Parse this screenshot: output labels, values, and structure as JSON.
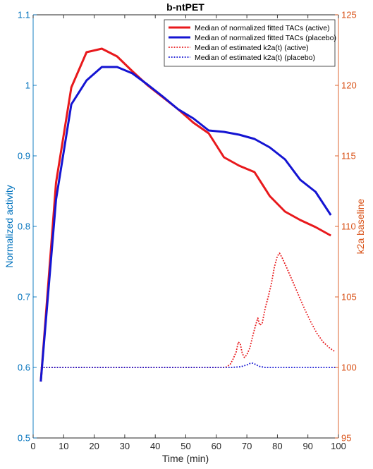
{
  "colors": {
    "left_axis": "#0072BD",
    "right_axis": "#D95319",
    "active": "#e8191c",
    "placebo": "#1414d2"
  },
  "chart_data": {
    "type": "line",
    "title": "b-ntPET",
    "xlabel": "Time (min)",
    "ylabel": "Normalized activity",
    "y2label": "k2a baseline",
    "xlim": [
      0,
      100
    ],
    "ylim": [
      0.5,
      1.1
    ],
    "y2lim": [
      95,
      125
    ],
    "x_ticks": [
      "0",
      "10",
      "20",
      "30",
      "40",
      "50",
      "60",
      "70",
      "80",
      "90",
      "100"
    ],
    "y_ticks": [
      "0.5",
      "0.6",
      "0.7",
      "0.8",
      "0.9",
      "1",
      "1.1"
    ],
    "y2_ticks": [
      "95",
      "100",
      "105",
      "110",
      "115",
      "120",
      "125"
    ],
    "legend_position": "top-right",
    "grid": false,
    "series": [
      {
        "name": "Median of normalized fitted TACs (active)",
        "axis": "left",
        "style": "solid",
        "color": "#e8191c",
        "x": [
          2.5,
          7.5,
          12.5,
          17.5,
          22.5,
          27.5,
          32.5,
          37.5,
          42.5,
          47.5,
          52.5,
          57.5,
          62.5,
          67.5,
          72.5,
          77.5,
          82.5,
          87.5,
          92.5,
          97.5
        ],
        "y": [
          0.58,
          0.862,
          0.997,
          1.047,
          1.052,
          1.041,
          1.02,
          1.0,
          0.983,
          0.966,
          0.947,
          0.932,
          0.898,
          0.886,
          0.877,
          0.843,
          0.821,
          0.809,
          0.799,
          0.787
        ]
      },
      {
        "name": "Median of normalized fitted TACs  (placebo)",
        "axis": "left",
        "style": "solid",
        "color": "#1414d2",
        "x": [
          2.5,
          7.5,
          12.5,
          17.5,
          22.5,
          27.5,
          32.5,
          37.5,
          42.5,
          47.5,
          52.5,
          57.5,
          62.5,
          67.5,
          72.5,
          77.5,
          82.5,
          87.5,
          92.5,
          97.5
        ],
        "y": [
          0.58,
          0.838,
          0.973,
          1.007,
          1.026,
          1.026,
          1.017,
          1.001,
          0.984,
          0.966,
          0.953,
          0.936,
          0.934,
          0.93,
          0.924,
          0.912,
          0.895,
          0.866,
          0.849,
          0.816
        ]
      },
      {
        "name": "Median of estimated k2a(t) (active)",
        "axis": "right",
        "style": "dotted",
        "color": "#e8191c",
        "x": [
          2.5,
          10,
          20,
          30,
          40,
          50,
          60,
          63,
          64.5,
          65.5,
          66.5,
          67.2,
          67.8,
          68.5,
          69.2,
          70,
          71,
          72,
          73,
          73.6,
          74.2,
          75,
          76,
          77,
          78,
          79,
          80,
          80.7,
          81.5,
          83,
          85,
          87,
          89,
          91,
          93,
          95,
          97,
          99
        ],
        "y": [
          100,
          100,
          100,
          100,
          100,
          100,
          100,
          100,
          100.2,
          100.6,
          101.1,
          101.8,
          101.7,
          101.0,
          100.7,
          100.9,
          101.4,
          102.3,
          103.1,
          103.5,
          103.0,
          103.1,
          104.2,
          105.0,
          105.9,
          107.1,
          107.9,
          108.1,
          107.8,
          107.1,
          106.1,
          105.1,
          104.1,
          103.2,
          102.4,
          101.8,
          101.4,
          101.1
        ]
      },
      {
        "name": "Median of estimated k2a(t) (placebo)",
        "axis": "right",
        "style": "dotted",
        "color": "#1414d2",
        "x": [
          2.5,
          10,
          20,
          30,
          40,
          50,
          60,
          65,
          68,
          70,
          71,
          72,
          73,
          74,
          76,
          80,
          90,
          99
        ],
        "y": [
          100,
          100,
          100,
          100,
          100,
          100,
          100,
          100,
          100.05,
          100.18,
          100.28,
          100.3,
          100.2,
          100.08,
          100,
          100,
          100,
          100
        ]
      }
    ]
  }
}
